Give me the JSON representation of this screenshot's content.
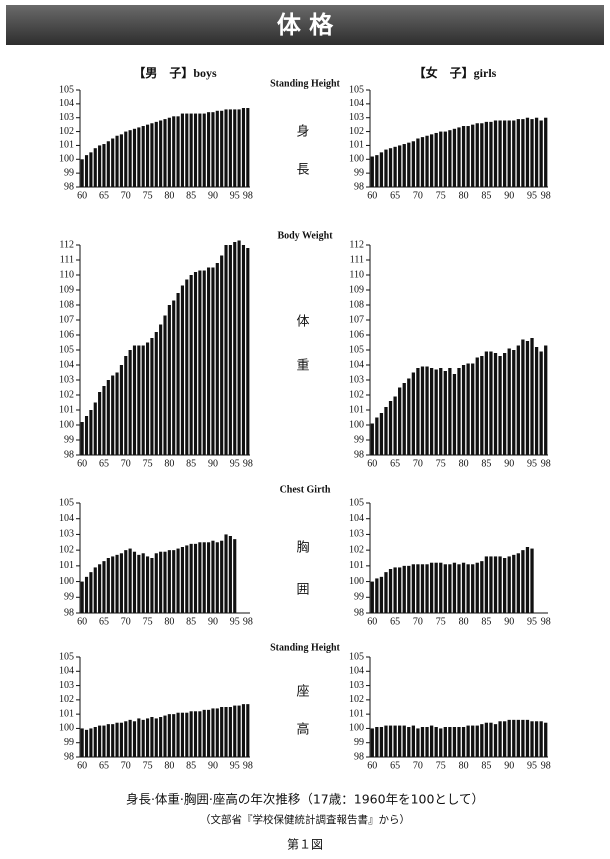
{
  "header": {
    "title": "体 格"
  },
  "columns": [
    "【男　子】boys",
    "【女　子】girls"
  ],
  "sections": [
    {
      "label": "Standing Height",
      "kanji": [
        "身",
        "長"
      ]
    },
    {
      "label": "Body Weight",
      "kanji": [
        "体",
        "重"
      ]
    },
    {
      "label": "Chest Girth",
      "kanji": [
        "胸",
        "囲"
      ]
    },
    {
      "label": "Standing Height",
      "kanji": [
        "座",
        "高"
      ]
    }
  ],
  "captions": [
    "身長·体重·胸囲·座高の年次推移（17歳：1960年を100として）",
    "（文部省『学校保健統計調査報告書』から）"
  ],
  "figure_label": "第１図",
  "chart_data": [
    {
      "type": "bar",
      "color": "#111111",
      "ylim": [
        98,
        105
      ],
      "yticks": [
        98,
        99,
        100,
        101,
        102,
        103,
        104,
        105
      ],
      "categories": [
        "60",
        null,
        null,
        null,
        null,
        "65",
        null,
        null,
        null,
        null,
        "70",
        null,
        null,
        null,
        null,
        "75",
        null,
        null,
        null,
        null,
        "80",
        null,
        null,
        null,
        null,
        "85",
        null,
        null,
        null,
        null,
        "90",
        null,
        null,
        null,
        null,
        "95",
        null,
        null,
        "98"
      ],
      "values": [
        100.0,
        100.3,
        100.5,
        100.8,
        101.0,
        101.1,
        101.3,
        101.5,
        101.7,
        101.8,
        102.0,
        102.1,
        102.2,
        102.3,
        102.4,
        102.5,
        102.6,
        102.7,
        102.8,
        102.9,
        103.0,
        103.1,
        103.1,
        103.3,
        103.3,
        103.3,
        103.3,
        103.3,
        103.3,
        103.4,
        103.4,
        103.5,
        103.5,
        103.6,
        103.6,
        103.6,
        103.6,
        103.7,
        103.7
      ]
    },
    {
      "type": "bar",
      "color": "#111111",
      "ylim": [
        98,
        105
      ],
      "yticks": [
        98,
        99,
        100,
        101,
        102,
        103,
        104,
        105
      ],
      "categories": [
        "60",
        null,
        null,
        null,
        null,
        "65",
        null,
        null,
        null,
        null,
        "70",
        null,
        null,
        null,
        null,
        "75",
        null,
        null,
        null,
        null,
        "80",
        null,
        null,
        null,
        null,
        "85",
        null,
        null,
        null,
        null,
        "90",
        null,
        null,
        null,
        null,
        "95",
        null,
        null,
        "98"
      ],
      "values": [
        100.2,
        100.3,
        100.5,
        100.7,
        100.8,
        100.9,
        101.0,
        101.1,
        101.2,
        101.3,
        101.5,
        101.6,
        101.7,
        101.8,
        101.9,
        102.0,
        102.0,
        102.1,
        102.2,
        102.3,
        102.4,
        102.4,
        102.5,
        102.6,
        102.6,
        102.7,
        102.7,
        102.8,
        102.8,
        102.8,
        102.8,
        102.8,
        102.9,
        102.9,
        103.0,
        102.9,
        103.0,
        102.8,
        103.0
      ]
    },
    {
      "type": "bar",
      "color": "#111111",
      "ylim": [
        98,
        112
      ],
      "yticks": [
        98,
        99,
        100,
        101,
        102,
        103,
        104,
        105,
        106,
        107,
        108,
        109,
        110,
        111,
        112
      ],
      "categories": [
        "60",
        null,
        null,
        null,
        null,
        "65",
        null,
        null,
        null,
        null,
        "70",
        null,
        null,
        null,
        null,
        "75",
        null,
        null,
        null,
        null,
        "80",
        null,
        null,
        null,
        null,
        "85",
        null,
        null,
        null,
        null,
        "90",
        null,
        null,
        null,
        null,
        "95",
        null,
        null,
        "98"
      ],
      "values": [
        100.2,
        100.6,
        101.0,
        101.5,
        102.2,
        102.6,
        103.0,
        103.3,
        103.5,
        104.0,
        104.6,
        105.0,
        105.3,
        105.3,
        105.3,
        105.5,
        105.8,
        106.2,
        106.7,
        107.3,
        108.0,
        108.3,
        108.8,
        109.3,
        109.7,
        110.0,
        110.2,
        110.3,
        110.3,
        110.5,
        110.5,
        110.8,
        111.3,
        112.0,
        112.0,
        112.2,
        112.3,
        112.0,
        111.8
      ]
    },
    {
      "type": "bar",
      "color": "#111111",
      "ylim": [
        98,
        112
      ],
      "yticks": [
        98,
        99,
        100,
        101,
        102,
        103,
        104,
        105,
        106,
        107,
        108,
        109,
        110,
        111,
        112
      ],
      "categories": [
        "60",
        null,
        null,
        null,
        null,
        "65",
        null,
        null,
        null,
        null,
        "70",
        null,
        null,
        null,
        null,
        "75",
        null,
        null,
        null,
        null,
        "80",
        null,
        null,
        null,
        null,
        "85",
        null,
        null,
        null,
        null,
        "90",
        null,
        null,
        null,
        null,
        "95",
        null,
        null,
        "98"
      ],
      "values": [
        100.1,
        100.5,
        100.8,
        101.2,
        101.6,
        101.9,
        102.5,
        102.8,
        103.1,
        103.5,
        103.8,
        103.9,
        103.9,
        103.8,
        103.7,
        103.8,
        103.6,
        103.8,
        103.4,
        103.8,
        104.0,
        104.1,
        104.1,
        104.5,
        104.6,
        104.9,
        104.9,
        104.8,
        104.6,
        104.8,
        105.1,
        105.0,
        105.3,
        105.7,
        105.6,
        105.8,
        105.2,
        104.9,
        105.3
      ]
    },
    {
      "type": "bar",
      "color": "#111111",
      "ylim": [
        98,
        105
      ],
      "yticks": [
        98,
        99,
        100,
        101,
        102,
        103,
        104,
        105
      ],
      "categories": [
        "60",
        null,
        null,
        null,
        null,
        "65",
        null,
        null,
        null,
        null,
        "70",
        null,
        null,
        null,
        null,
        "75",
        null,
        null,
        null,
        null,
        "80",
        null,
        null,
        null,
        null,
        "85",
        null,
        null,
        null,
        null,
        "90",
        null,
        null,
        null,
        null,
        "95",
        null,
        null,
        "98"
      ],
      "values": [
        100.0,
        100.3,
        100.6,
        100.9,
        101.1,
        101.3,
        101.5,
        101.6,
        101.7,
        101.8,
        102.0,
        102.1,
        101.9,
        101.7,
        101.8,
        101.6,
        101.5,
        101.8,
        101.9,
        101.9,
        102.0,
        102.0,
        102.1,
        102.2,
        102.3,
        102.4,
        102.4,
        102.5,
        102.5,
        102.5,
        102.6,
        102.5,
        102.6,
        103.0,
        102.9,
        102.7,
        null,
        null,
        null
      ]
    },
    {
      "type": "bar",
      "color": "#111111",
      "ylim": [
        98,
        105
      ],
      "yticks": [
        98,
        99,
        100,
        101,
        102,
        103,
        104,
        105
      ],
      "categories": [
        "60",
        null,
        null,
        null,
        null,
        "65",
        null,
        null,
        null,
        null,
        "70",
        null,
        null,
        null,
        null,
        "75",
        null,
        null,
        null,
        null,
        "80",
        null,
        null,
        null,
        null,
        "85",
        null,
        null,
        null,
        null,
        "90",
        null,
        null,
        null,
        null,
        "95",
        null,
        null,
        "98"
      ],
      "values": [
        100.0,
        100.2,
        100.3,
        100.6,
        100.8,
        100.9,
        100.9,
        101.0,
        101.0,
        101.1,
        101.1,
        101.1,
        101.1,
        101.2,
        101.2,
        101.2,
        101.1,
        101.1,
        101.2,
        101.1,
        101.2,
        101.1,
        101.1,
        101.2,
        101.3,
        101.6,
        101.6,
        101.6,
        101.6,
        101.5,
        101.6,
        101.7,
        101.8,
        102.0,
        102.2,
        102.1,
        null,
        null,
        null
      ]
    },
    {
      "type": "bar",
      "color": "#111111",
      "ylim": [
        98,
        105
      ],
      "yticks": [
        98,
        99,
        100,
        101,
        102,
        103,
        104,
        105
      ],
      "categories": [
        "60",
        null,
        null,
        null,
        null,
        "65",
        null,
        null,
        null,
        null,
        "70",
        null,
        null,
        null,
        null,
        "75",
        null,
        null,
        null,
        null,
        "80",
        null,
        null,
        null,
        null,
        "85",
        null,
        null,
        null,
        null,
        "90",
        null,
        null,
        null,
        null,
        "95",
        null,
        null,
        "98"
      ],
      "values": [
        100.0,
        99.9,
        100.0,
        100.1,
        100.2,
        100.2,
        100.3,
        100.3,
        100.4,
        100.4,
        100.5,
        100.6,
        100.5,
        100.7,
        100.6,
        100.7,
        100.8,
        100.7,
        100.8,
        100.9,
        101.0,
        101.0,
        101.1,
        101.1,
        101.1,
        101.2,
        101.2,
        101.2,
        101.3,
        101.3,
        101.4,
        101.4,
        101.5,
        101.5,
        101.5,
        101.6,
        101.6,
        101.7,
        101.7
      ]
    },
    {
      "type": "bar",
      "color": "#111111",
      "ylim": [
        98,
        105
      ],
      "yticks": [
        98,
        99,
        100,
        101,
        102,
        103,
        104,
        105
      ],
      "categories": [
        "60",
        null,
        null,
        null,
        null,
        "65",
        null,
        null,
        null,
        null,
        "70",
        null,
        null,
        null,
        null,
        "75",
        null,
        null,
        null,
        null,
        "80",
        null,
        null,
        null,
        null,
        "85",
        null,
        null,
        null,
        null,
        "90",
        null,
        null,
        null,
        null,
        "95",
        null,
        null,
        "98"
      ],
      "values": [
        100.0,
        100.1,
        100.1,
        100.2,
        100.2,
        100.2,
        100.2,
        100.2,
        100.1,
        100.2,
        100.0,
        100.1,
        100.1,
        100.2,
        100.1,
        100.0,
        100.1,
        100.1,
        100.1,
        100.1,
        100.1,
        100.2,
        100.2,
        100.2,
        100.3,
        100.4,
        100.4,
        100.3,
        100.5,
        100.5,
        100.6,
        100.6,
        100.6,
        100.6,
        100.6,
        100.5,
        100.5,
        100.5,
        100.4
      ]
    }
  ]
}
